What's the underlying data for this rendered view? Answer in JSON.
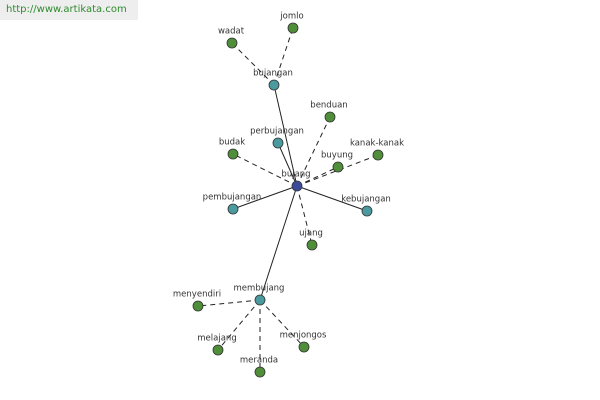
{
  "header": {
    "url": "http://www.artikata.com"
  },
  "nodes": [
    {
      "label": "bujang",
      "color": "#3b4a9a"
    },
    {
      "label": "bujangan",
      "color": "#4a9aa0"
    },
    {
      "label": "wadat",
      "color": "#4f8f3a"
    },
    {
      "label": "jomlo",
      "color": "#4f8f3a"
    },
    {
      "label": "benduan",
      "color": "#4f8f3a"
    },
    {
      "label": "perbujangan",
      "color": "#4a9aa0"
    },
    {
      "label": "budak",
      "color": "#4f8f3a"
    },
    {
      "label": "kanak-kanak",
      "color": "#4f8f3a"
    },
    {
      "label": "buyung",
      "color": "#4f8f3a"
    },
    {
      "label": "pembujangan",
      "color": "#4a9aa0"
    },
    {
      "label": "kebujangan",
      "color": "#4a9aa0"
    },
    {
      "label": "ujang",
      "color": "#4f8f3a"
    },
    {
      "label": "membujang",
      "color": "#4a9aa0"
    },
    {
      "label": "menyendiri",
      "color": "#4f8f3a"
    },
    {
      "label": "melajang",
      "color": "#4f8f3a"
    },
    {
      "label": "menjongos",
      "color": "#4f8f3a"
    },
    {
      "label": "meranda",
      "color": "#4f8f3a"
    }
  ],
  "edges": [
    {
      "source": 0,
      "target": 1,
      "style": "solid"
    },
    {
      "source": 1,
      "target": 2,
      "style": "dashed"
    },
    {
      "source": 1,
      "target": 3,
      "style": "dashed"
    },
    {
      "source": 0,
      "target": 4,
      "style": "dashed"
    },
    {
      "source": 0,
      "target": 5,
      "style": "solid"
    },
    {
      "source": 0,
      "target": 6,
      "style": "dashed"
    },
    {
      "source": 0,
      "target": 7,
      "style": "dashed"
    },
    {
      "source": 0,
      "target": 8,
      "style": "dashed"
    },
    {
      "source": 0,
      "target": 9,
      "style": "solid"
    },
    {
      "source": 0,
      "target": 10,
      "style": "solid"
    },
    {
      "source": 0,
      "target": 11,
      "style": "dashed"
    },
    {
      "source": 0,
      "target": 12,
      "style": "solid"
    },
    {
      "source": 12,
      "target": 13,
      "style": "dashed"
    },
    {
      "source": 12,
      "target": 14,
      "style": "dashed"
    },
    {
      "source": 12,
      "target": 15,
      "style": "dashed"
    },
    {
      "source": 12,
      "target": 16,
      "style": "dashed"
    }
  ]
}
